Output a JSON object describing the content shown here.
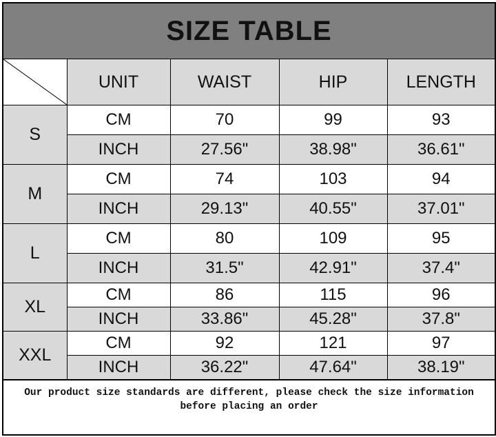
{
  "title": "SIZE TABLE",
  "headers": [
    "UNIT",
    "WAIST",
    "HIP",
    "LENGTH"
  ],
  "rows": [
    {
      "size": "S",
      "cm": {
        "unit": "CM",
        "waist": "70",
        "hip": "99",
        "length": "93"
      },
      "inch": {
        "unit": "INCH",
        "waist": "27.56\"",
        "hip": "38.98\"",
        "length": "36.61\""
      }
    },
    {
      "size": "M",
      "cm": {
        "unit": "CM",
        "waist": "74",
        "hip": "103",
        "length": "94"
      },
      "inch": {
        "unit": "INCH",
        "waist": "29.13\"",
        "hip": "40.55\"",
        "length": "37.01\""
      }
    },
    {
      "size": "L",
      "cm": {
        "unit": "CM",
        "waist": "80",
        "hip": "109",
        "length": "95"
      },
      "inch": {
        "unit": "INCH",
        "waist": "31.5\"",
        "hip": "42.91\"",
        "length": "37.4\""
      }
    },
    {
      "size": "XL",
      "cm": {
        "unit": "CM",
        "waist": "86",
        "hip": "115",
        "length": "96"
      },
      "inch": {
        "unit": "INCH",
        "waist": "33.86\"",
        "hip": "45.28\"",
        "length": "37.8\""
      }
    },
    {
      "size": "XXL",
      "cm": {
        "unit": "CM",
        "waist": "92",
        "hip": "121",
        "length": "97"
      },
      "inch": {
        "unit": "INCH",
        "waist": "36.22\"",
        "hip": "47.64\"",
        "length": "38.19\""
      }
    }
  ],
  "note_line1": "Our product size standards are different, please check the size information",
  "note_line2": "before placing an order",
  "colors": {
    "title_bg": "#808080",
    "header_bg": "#d9d9d9",
    "border": "#000000"
  }
}
